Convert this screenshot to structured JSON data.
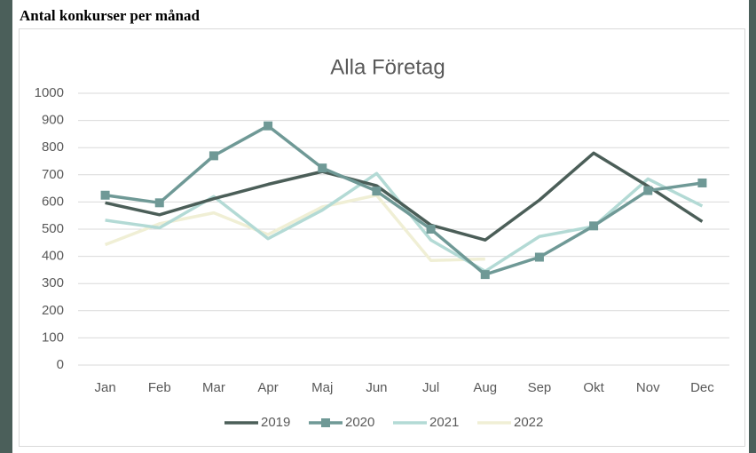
{
  "heading": "Antal konkurser per månad",
  "chart_data": {
    "type": "line",
    "title": "Alla Företag",
    "categories": [
      "Jan",
      "Feb",
      "Mar",
      "Apr",
      "Maj",
      "Jun",
      "Jul",
      "Aug",
      "Sep",
      "Okt",
      "Nov",
      "Dec"
    ],
    "series": [
      {
        "name": "2019",
        "color": "#4b5e58",
        "marker": null,
        "values": [
          597,
          553,
          612,
          665,
          712,
          660,
          515,
          460,
          607,
          780,
          658,
          528
        ]
      },
      {
        "name": "2020",
        "color": "#6f9996",
        "marker": "square",
        "values": [
          625,
          597,
          770,
          880,
          725,
          640,
          500,
          333,
          397,
          512,
          642,
          670
        ]
      },
      {
        "name": "2021",
        "color": "#b3dad5",
        "marker": null,
        "values": [
          533,
          505,
          620,
          465,
          570,
          705,
          460,
          345,
          473,
          510,
          685,
          585
        ]
      },
      {
        "name": "2022",
        "color": "#f0efd5",
        "marker": null,
        "values": [
          443,
          520,
          560,
          480,
          582,
          625,
          385,
          390,
          null,
          null,
          null,
          null
        ]
      }
    ],
    "ylim": [
      0,
      1000
    ],
    "yticks": [
      0,
      100,
      200,
      300,
      400,
      500,
      600,
      700,
      800,
      900,
      1000
    ],
    "grid": true,
    "legend": "bottom"
  }
}
